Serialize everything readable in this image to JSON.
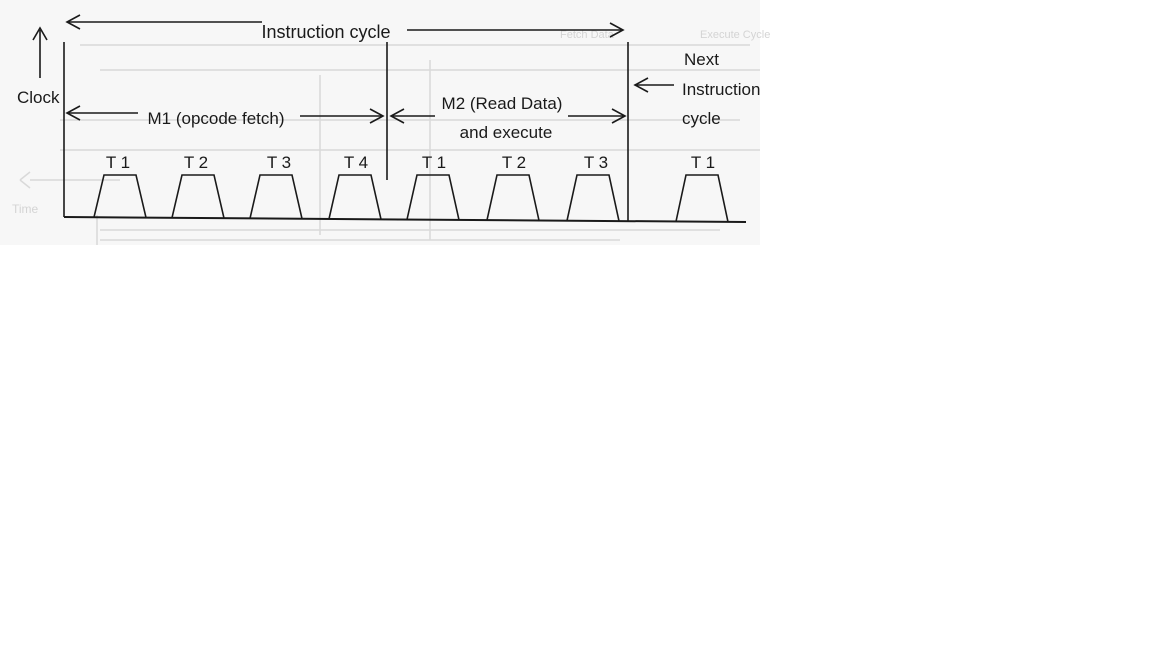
{
  "diagram": {
    "y_axis_label": "Clock",
    "instruction_cycle_label": "Instruction cycle",
    "m1_label": "M1 (opcode fetch)",
    "m2_label_line1": "M2 (Read Data)",
    "m2_label_line2": "and execute",
    "next_label_line1": "Next",
    "next_label_line2": "Instruction",
    "next_label_line3": "cycle",
    "states": [
      {
        "label": "T 1",
        "machine_cycle": "M1"
      },
      {
        "label": "T 2",
        "machine_cycle": "M1"
      },
      {
        "label": "T 3",
        "machine_cycle": "M1"
      },
      {
        "label": "T 4",
        "machine_cycle": "M1"
      },
      {
        "label": "T 1",
        "machine_cycle": "M2"
      },
      {
        "label": "T 2",
        "machine_cycle": "M2"
      },
      {
        "label": "T 3",
        "machine_cycle": "M2"
      },
      {
        "label": "T 1",
        "machine_cycle": "Next"
      }
    ],
    "line_color": "#1a1a1a",
    "background_color": "#f7f7f7"
  }
}
